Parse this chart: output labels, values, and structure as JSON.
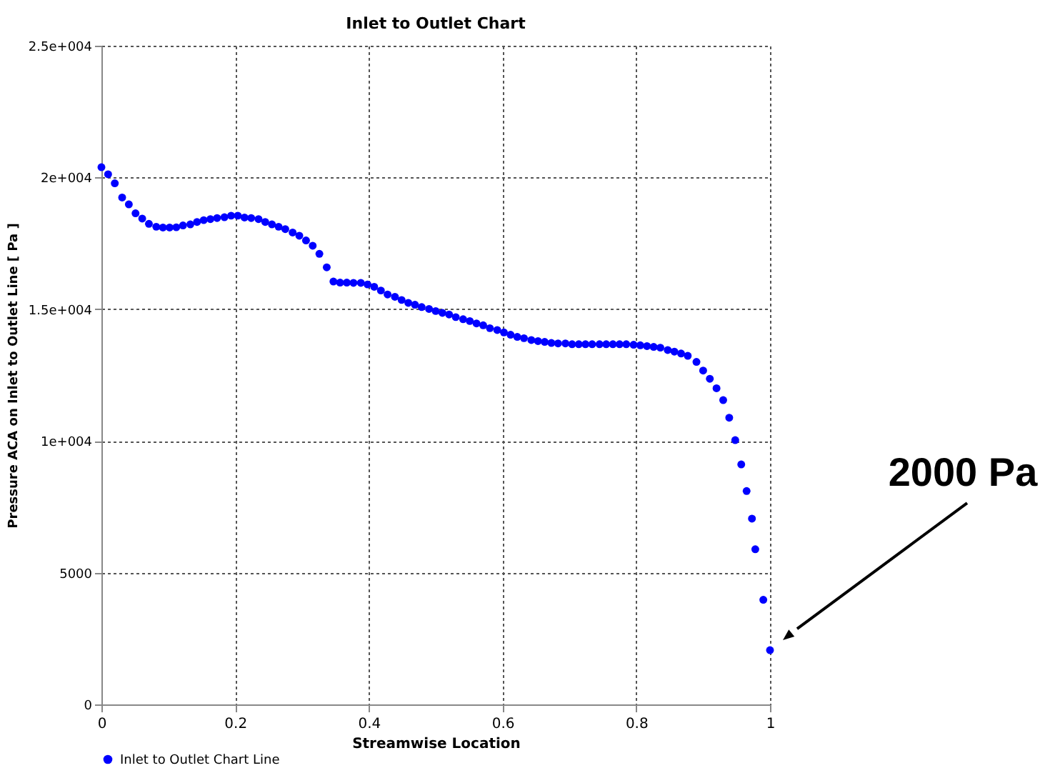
{
  "chart_data": {
    "type": "scatter",
    "title": "Inlet to Outlet Chart",
    "xlabel": "Streamwise Location",
    "ylabel": "Pressure ACA on Inlet to Outlet Line [ Pa ]",
    "x": [
      0,
      0.01,
      0.02,
      0.031,
      0.041,
      0.051,
      0.061,
      0.071,
      0.082,
      0.092,
      0.102,
      0.112,
      0.122,
      0.133,
      0.143,
      0.153,
      0.163,
      0.173,
      0.184,
      0.194,
      0.204,
      0.214,
      0.224,
      0.235,
      0.245,
      0.255,
      0.265,
      0.275,
      0.286,
      0.296,
      0.306,
      0.316,
      0.326,
      0.337,
      0.347,
      0.357,
      0.367,
      0.377,
      0.388,
      0.398,
      0.408,
      0.418,
      0.428,
      0.439,
      0.449,
      0.459,
      0.469,
      0.479,
      0.49,
      0.5,
      0.51,
      0.52,
      0.53,
      0.541,
      0.551,
      0.561,
      0.571,
      0.581,
      0.592,
      0.602,
      0.612,
      0.622,
      0.632,
      0.643,
      0.653,
      0.663,
      0.673,
      0.683,
      0.694,
      0.704,
      0.714,
      0.724,
      0.734,
      0.745,
      0.755,
      0.765,
      0.775,
      0.785,
      0.796,
      0.806,
      0.816,
      0.826,
      0.836,
      0.847,
      0.857,
      0.867,
      0.877,
      0.89,
      0.9,
      0.91,
      0.92,
      0.93,
      0.939,
      0.948,
      0.957,
      0.965,
      0.973,
      0.978,
      0.99,
      1.0
    ],
    "series": [
      {
        "name": "Inlet to Outlet Chart Line",
        "color": "#0000ff",
        "values": [
          20390,
          20120,
          19780,
          19240,
          18980,
          18640,
          18440,
          18240,
          18130,
          18100,
          18100,
          18110,
          18180,
          18220,
          18310,
          18380,
          18420,
          18460,
          18490,
          18550,
          18550,
          18480,
          18460,
          18420,
          18310,
          18220,
          18130,
          18040,
          17910,
          17790,
          17610,
          17410,
          17100,
          16590,
          16050,
          16010,
          16010,
          16000,
          16000,
          15940,
          15850,
          15710,
          15560,
          15470,
          15350,
          15240,
          15170,
          15080,
          15010,
          14930,
          14860,
          14800,
          14700,
          14620,
          14550,
          14460,
          14390,
          14280,
          14210,
          14120,
          14030,
          13950,
          13900,
          13830,
          13790,
          13760,
          13720,
          13700,
          13700,
          13670,
          13670,
          13670,
          13670,
          13670,
          13670,
          13670,
          13670,
          13670,
          13650,
          13630,
          13600,
          13570,
          13540,
          13450,
          13390,
          13320,
          13230,
          13000,
          12670,
          12360,
          12000,
          11550,
          10880,
          10030,
          9110,
          8100,
          7050,
          5890,
          3970,
          2060
        ]
      }
    ],
    "xlim": [
      0,
      1
    ],
    "ylim": [
      0,
      25000
    ],
    "xticks": [
      0,
      0.2,
      0.4,
      0.6,
      0.8,
      1
    ],
    "yticks": [
      0,
      5000,
      {
        "value": 10000,
        "label": "1e+004"
      },
      {
        "value": 15000,
        "label": "1.5e+004"
      },
      {
        "value": 20000,
        "label": "2e+004"
      },
      {
        "value": 25000,
        "label": "2.5e+004"
      }
    ],
    "grid": true,
    "legend": "bottom",
    "marker": "circle",
    "annotations": [
      "2000 Pa"
    ]
  }
}
